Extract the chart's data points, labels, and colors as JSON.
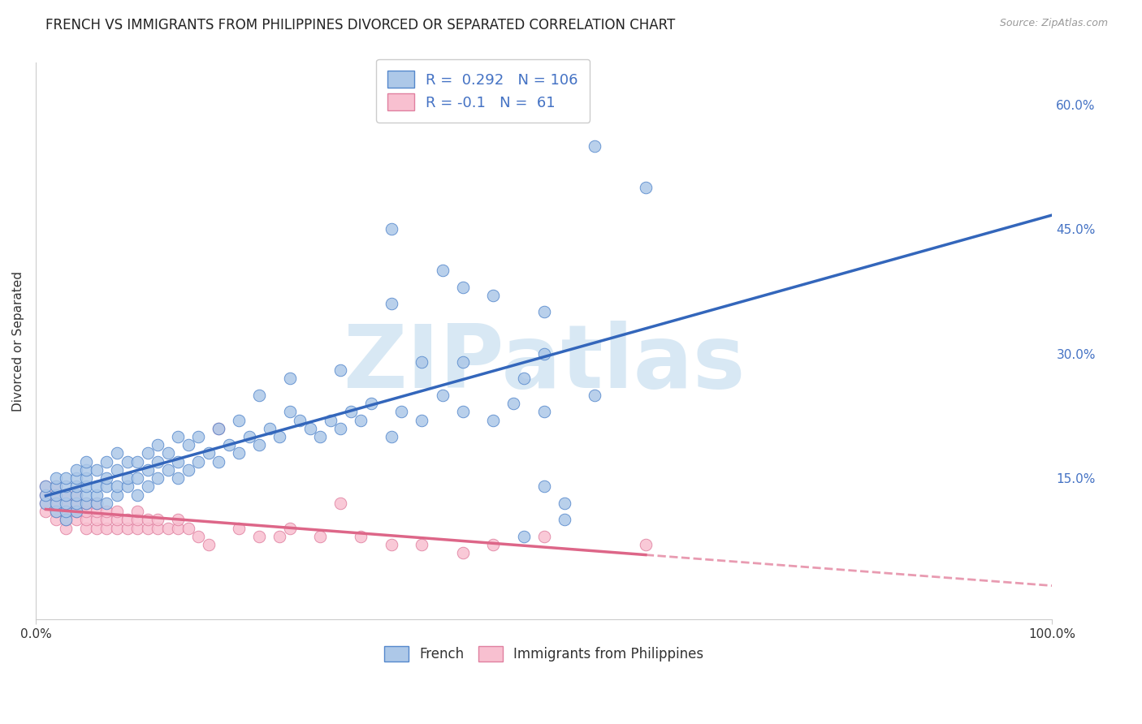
{
  "title": "FRENCH VS IMMIGRANTS FROM PHILIPPINES DIVORCED OR SEPARATED CORRELATION CHART",
  "source_text": "Source: ZipAtlas.com",
  "ylabel": "Divorced or Separated",
  "xlim": [
    0.0,
    1.0
  ],
  "ylim": [
    -0.02,
    0.65
  ],
  "french_R": 0.292,
  "french_N": 106,
  "philippines_R": -0.1,
  "philippines_N": 61,
  "french_color": "#adc8e8",
  "french_edge_color": "#5588cc",
  "french_line_color": "#3366bb",
  "philippines_color": "#f8c0d0",
  "philippines_edge_color": "#e080a0",
  "philippines_line_color": "#dd6688",
  "watermark_color": "#d8e8f4",
  "background_color": "#ffffff",
  "title_fontsize": 12,
  "axis_label_fontsize": 11,
  "tick_fontsize": 11,
  "ytick_color": "#4472c4",
  "grid_color": "#cccccc",
  "french_x": [
    0.01,
    0.01,
    0.01,
    0.02,
    0.02,
    0.02,
    0.02,
    0.02,
    0.03,
    0.03,
    0.03,
    0.03,
    0.03,
    0.03,
    0.04,
    0.04,
    0.04,
    0.04,
    0.04,
    0.04,
    0.05,
    0.05,
    0.05,
    0.05,
    0.05,
    0.05,
    0.06,
    0.06,
    0.06,
    0.06,
    0.07,
    0.07,
    0.07,
    0.07,
    0.08,
    0.08,
    0.08,
    0.08,
    0.09,
    0.09,
    0.09,
    0.1,
    0.1,
    0.1,
    0.11,
    0.11,
    0.11,
    0.12,
    0.12,
    0.12,
    0.13,
    0.13,
    0.14,
    0.14,
    0.14,
    0.15,
    0.15,
    0.16,
    0.16,
    0.17,
    0.18,
    0.18,
    0.19,
    0.2,
    0.2,
    0.21,
    0.22,
    0.23,
    0.24,
    0.25,
    0.26,
    0.27,
    0.28,
    0.29,
    0.3,
    0.31,
    0.32,
    0.33,
    0.35,
    0.36,
    0.38,
    0.4,
    0.42,
    0.45,
    0.47,
    0.5,
    0.55,
    0.38,
    0.42,
    0.5,
    0.35,
    0.3,
    0.48,
    0.52,
    0.55,
    0.6,
    0.35,
    0.4,
    0.45,
    0.5,
    0.22,
    0.25,
    0.42,
    0.48,
    0.5,
    0.52
  ],
  "french_y": [
    0.12,
    0.13,
    0.14,
    0.11,
    0.12,
    0.13,
    0.14,
    0.15,
    0.1,
    0.11,
    0.12,
    0.13,
    0.14,
    0.15,
    0.11,
    0.12,
    0.13,
    0.14,
    0.15,
    0.16,
    0.12,
    0.13,
    0.14,
    0.15,
    0.16,
    0.17,
    0.12,
    0.13,
    0.14,
    0.16,
    0.12,
    0.14,
    0.15,
    0.17,
    0.13,
    0.14,
    0.16,
    0.18,
    0.14,
    0.15,
    0.17,
    0.13,
    0.15,
    0.17,
    0.14,
    0.16,
    0.18,
    0.15,
    0.17,
    0.19,
    0.16,
    0.18,
    0.15,
    0.17,
    0.2,
    0.16,
    0.19,
    0.17,
    0.2,
    0.18,
    0.17,
    0.21,
    0.19,
    0.18,
    0.22,
    0.2,
    0.19,
    0.21,
    0.2,
    0.23,
    0.22,
    0.21,
    0.2,
    0.22,
    0.21,
    0.23,
    0.22,
    0.24,
    0.2,
    0.23,
    0.22,
    0.25,
    0.23,
    0.22,
    0.24,
    0.23,
    0.25,
    0.29,
    0.38,
    0.3,
    0.36,
    0.28,
    0.08,
    0.1,
    0.55,
    0.5,
    0.45,
    0.4,
    0.37,
    0.35,
    0.25,
    0.27,
    0.29,
    0.27,
    0.14,
    0.12
  ],
  "philippines_x": [
    0.01,
    0.01,
    0.01,
    0.01,
    0.02,
    0.02,
    0.02,
    0.02,
    0.02,
    0.03,
    0.03,
    0.03,
    0.03,
    0.03,
    0.04,
    0.04,
    0.04,
    0.04,
    0.05,
    0.05,
    0.05,
    0.05,
    0.06,
    0.06,
    0.06,
    0.06,
    0.07,
    0.07,
    0.07,
    0.08,
    0.08,
    0.08,
    0.09,
    0.09,
    0.1,
    0.1,
    0.1,
    0.11,
    0.11,
    0.12,
    0.12,
    0.13,
    0.14,
    0.14,
    0.15,
    0.16,
    0.17,
    0.18,
    0.2,
    0.22,
    0.24,
    0.25,
    0.28,
    0.3,
    0.32,
    0.35,
    0.38,
    0.42,
    0.45,
    0.5,
    0.6
  ],
  "philippines_y": [
    0.11,
    0.12,
    0.13,
    0.14,
    0.1,
    0.11,
    0.12,
    0.13,
    0.14,
    0.09,
    0.1,
    0.11,
    0.12,
    0.13,
    0.1,
    0.11,
    0.12,
    0.13,
    0.09,
    0.1,
    0.11,
    0.12,
    0.09,
    0.1,
    0.11,
    0.12,
    0.09,
    0.1,
    0.11,
    0.09,
    0.1,
    0.11,
    0.09,
    0.1,
    0.09,
    0.1,
    0.11,
    0.09,
    0.1,
    0.09,
    0.1,
    0.09,
    0.09,
    0.1,
    0.09,
    0.08,
    0.07,
    0.21,
    0.09,
    0.08,
    0.08,
    0.09,
    0.08,
    0.12,
    0.08,
    0.07,
    0.07,
    0.06,
    0.07,
    0.08,
    0.07
  ],
  "french_line_start_x": 0.01,
  "french_line_end_x": 1.0,
  "philippines_line_start_x": 0.01,
  "philippines_line_solid_end_x": 0.6,
  "philippines_line_dash_end_x": 1.0
}
